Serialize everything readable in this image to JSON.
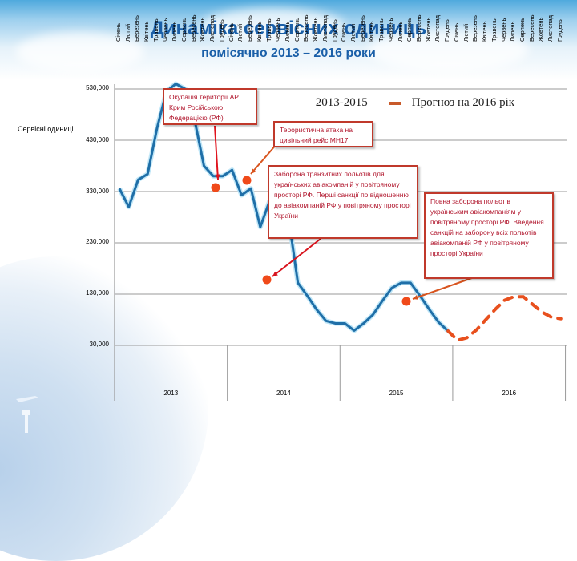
{
  "header": {
    "title": "Динаміка сервісних одиниць",
    "subtitle": "помісячно 2013 – 2016 роки"
  },
  "axis": {
    "ylabel": "Сервісні одиниці",
    "yticks": [
      "530,000",
      "430,000",
      "330,000",
      "230,000",
      "130,000",
      "30,000"
    ]
  },
  "legend": {
    "series1": "2013-2015",
    "series2": "Прогноз на 2016 рік"
  },
  "annotations": {
    "crimea": "Окупація території АР Крим Російською Федерацією (РФ)",
    "mh17": "Терористична атака на цивільний рейс МН17",
    "transit_ban": "Заборона транзитних польотів для українських авіакомпаній у повітряному просторі РФ. Перші санкції по відношенню до авіакомпаній РФ у повітряному просторі України",
    "full_ban": "Повна заборона польотів українським авіакомпаніям у повітряному просторі РФ. Введення санкцій на заборону всіх польотів авіакомпаній РФ у повітряному просторі України"
  },
  "months": [
    "Січень",
    "Лютий",
    "Березень",
    "Квітень",
    "Травень",
    "Червень",
    "Липень",
    "Серпень",
    "Вересень",
    "Жовтень",
    "Листопад",
    "Грудень"
  ],
  "years": [
    "2013",
    "2014",
    "2015",
    "2016"
  ],
  "colors": {
    "series1": "#1f6fa8",
    "forecast": "#e8501e",
    "annotation_border": "#c0392b",
    "annotation_text": "#b0142b",
    "title": "#1a5fa8"
  },
  "chart_data": {
    "type": "line",
    "title": "Динаміка сервісних одиниць",
    "subtitle": "помісячно 2013 – 2016 роки",
    "xlabel": "",
    "ylabel": "Сервісні одиниці",
    "ylim": [
      30000,
      530000
    ],
    "yticks": [
      30000,
      130000,
      230000,
      330000,
      430000,
      530000
    ],
    "grid": true,
    "legend_position": "top-right",
    "categories_years": [
      "2013",
      "2014",
      "2015",
      "2016"
    ],
    "categories_months": [
      "Січень",
      "Лютий",
      "Березень",
      "Квітень",
      "Травень",
      "Червень",
      "Липень",
      "Серпень",
      "Вересень",
      "Жовтень",
      "Листопад",
      "Грудень"
    ],
    "series": [
      {
        "name": "2013-2015",
        "style": "solid",
        "values": [
          336000,
          300000,
          353000,
          364000,
          453000,
          525000,
          540000,
          530000,
          470000,
          380000,
          360000,
          360000,
          372000,
          323000,
          336000,
          261000,
          312000,
          330000,
          280000,
          152000,
          127000,
          100000,
          78000,
          73000,
          73000,
          59000,
          73000,
          90000,
          117000,
          142000,
          152000,
          152000,
          127000,
          100000,
          75000,
          58000
        ]
      },
      {
        "name": "Прогноз на 2016 рік",
        "style": "dashed",
        "values": [
          40000,
          45000,
          60000,
          80000,
          100000,
          118000,
          125000,
          125000,
          110000,
          95000,
          85000,
          82000
        ]
      }
    ],
    "annotations": [
      {
        "text": "Окупація території АР Крим Російською Федерацією (РФ)",
        "at": "2014-Лютий"
      },
      {
        "text": "Терористична атака на цивільний рейс МН17",
        "at": "2014-Березень"
      },
      {
        "text": "Заборона транзитних польотів для українських авіакомпаній у повітряному просторі РФ. Перші санкції по відношенню до авіакомпаній РФ у повітряному просторі України",
        "at": "2014-Серпень"
      },
      {
        "text": "Повна заборона польотів українським авіакомпаніям у повітряному просторі РФ. Введення санкцій на заборону всіх польотів авіакомпаній РФ у повітряному просторі України",
        "at": "2015-Жовтень"
      }
    ]
  }
}
